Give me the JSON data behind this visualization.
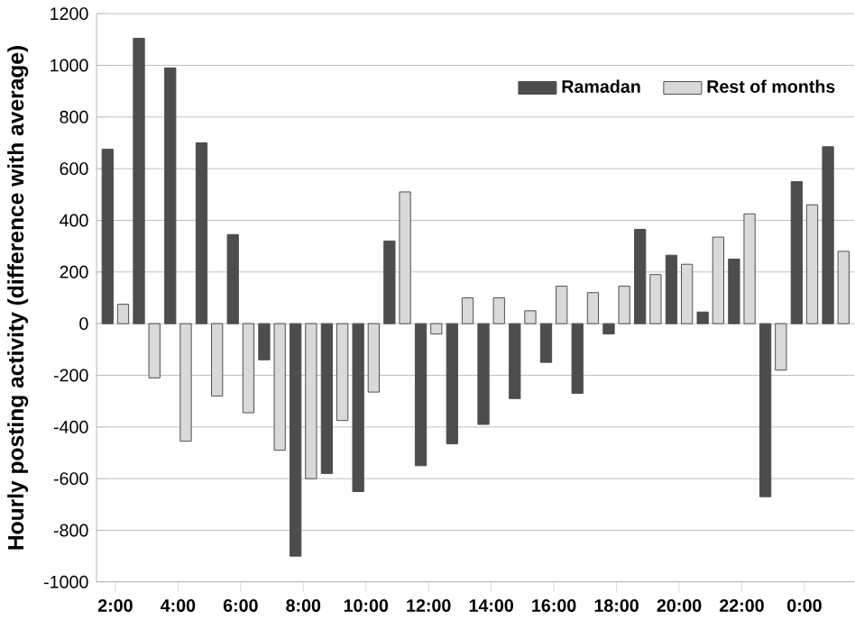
{
  "chart_data": {
    "type": "bar",
    "ylabel": "Hourly posting activity (difference with  average)",
    "categories": [
      "2:00",
      null,
      "4:00",
      null,
      "6:00",
      null,
      "8:00",
      null,
      "10:00",
      null,
      "12:00",
      null,
      "14:00",
      null,
      "16:00",
      null,
      "18:00",
      null,
      "20:00",
      null,
      "22:00",
      null,
      "0:00",
      null
    ],
    "series": [
      {
        "name": "Ramadan",
        "color": "#4d4d4d",
        "values": [
          675,
          1105,
          990,
          700,
          345,
          -140,
          -900,
          -580,
          -650,
          320,
          -550,
          -465,
          -390,
          -290,
          -150,
          -270,
          -40,
          365,
          265,
          45,
          250,
          -670,
          550,
          685
        ]
      },
      {
        "name": "Rest of months",
        "color": "#d9d9d9",
        "values": [
          75,
          -210,
          -455,
          -280,
          -345,
          -490,
          -600,
          -375,
          -265,
          510,
          -40,
          100,
          100,
          50,
          145,
          120,
          145,
          190,
          230,
          335,
          425,
          -180,
          460,
          280
        ]
      }
    ],
    "ylim": [
      -1000,
      1200
    ],
    "yticks": [
      -1000,
      -800,
      -600,
      -400,
      -200,
      0,
      200,
      400,
      600,
      800,
      1000,
      1200
    ],
    "grid": "y",
    "legend": "top right"
  }
}
